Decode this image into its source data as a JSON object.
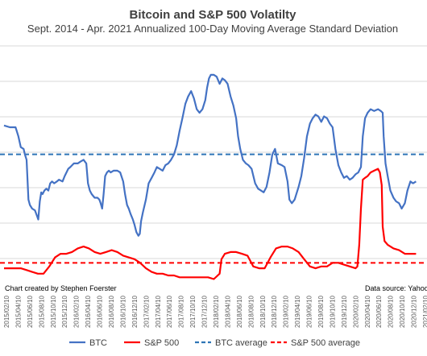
{
  "chart_data": {
    "type": "line",
    "title": "Bitcoin and S&P 500 Volatilty",
    "subtitle": "Sept. 2014 - Apr. 2021 Annualized 100-Day Moving Average Standard Deviation",
    "credit_left": "Chart created by Stephen Foerster",
    "credit_right": "Data source: Yahoo",
    "x_ticks": [
      "2015/02/10",
      "2015/04/10",
      "2015/06/10",
      "2015/08/10",
      "2015/10/10",
      "2015/12/10",
      "2016/02/10",
      "2016/04/10",
      "2016/06/10",
      "2016/08/10",
      "2016/10/10",
      "2016/12/10",
      "2017/02/10",
      "2017/04/10",
      "2017/06/10",
      "2017/08/10",
      "2017/10/10",
      "2017/12/10",
      "2018/02/10",
      "2018/04/10",
      "2018/06/10",
      "2018/08/10",
      "2018/10/10",
      "2018/12/10",
      "2019/02/10",
      "2019/04/10",
      "2019/06/10",
      "2019/08/10",
      "2019/10/10",
      "2019/12/10",
      "2020/02/10",
      "2020/04/10",
      "2020/06/10",
      "2020/08/10",
      "2020/10/10",
      "2020/12/10",
      "2021/02/10"
    ],
    "grid": true,
    "legend_position": "bottom",
    "series": [
      {
        "name": "BTC",
        "color": "#4472c4",
        "style": "solid",
        "points": [
          [
            "2014-12-10",
            76
          ],
          [
            "2015-01-10",
            75
          ],
          [
            "2015-02-10",
            75
          ],
          [
            "2015-02-25",
            70
          ],
          [
            "2015-03-10",
            64
          ],
          [
            "2015-03-25",
            63
          ],
          [
            "2015-04-01",
            60
          ],
          [
            "2015-04-10",
            57
          ],
          [
            "2015-04-20",
            35
          ],
          [
            "2015-04-28",
            32
          ],
          [
            "2015-05-10",
            30
          ],
          [
            "2015-05-25",
            29
          ],
          [
            "2015-06-05",
            26
          ],
          [
            "2015-06-12",
            24
          ],
          [
            "2015-06-20",
            34
          ],
          [
            "2015-06-28",
            39
          ],
          [
            "2015-07-05",
            38
          ],
          [
            "2015-07-15",
            40
          ],
          [
            "2015-07-25",
            41
          ],
          [
            "2015-08-05",
            40
          ],
          [
            "2015-08-15",
            44
          ],
          [
            "2015-08-25",
            45
          ],
          [
            "2015-09-05",
            44
          ],
          [
            "2015-09-20",
            45
          ],
          [
            "2015-10-01",
            46
          ],
          [
            "2015-10-20",
            45
          ],
          [
            "2015-11-01",
            48
          ],
          [
            "2015-11-20",
            52
          ],
          [
            "2015-12-01",
            53
          ],
          [
            "2015-12-20",
            55
          ],
          [
            "2016-01-10",
            55
          ],
          [
            "2016-01-25",
            56
          ],
          [
            "2016-02-10",
            57
          ],
          [
            "2016-02-25",
            55
          ],
          [
            "2016-03-05",
            44
          ],
          [
            "2016-03-15",
            40
          ],
          [
            "2016-03-25",
            38
          ],
          [
            "2016-04-10",
            36
          ],
          [
            "2016-04-25",
            36
          ],
          [
            "2016-05-05",
            35
          ],
          [
            "2016-05-12",
            33
          ],
          [
            "2016-05-20",
            30
          ],
          [
            "2016-05-28",
            38
          ],
          [
            "2016-06-05",
            48
          ],
          [
            "2016-06-15",
            50
          ],
          [
            "2016-06-25",
            51
          ],
          [
            "2016-07-05",
            50
          ],
          [
            "2016-07-20",
            51
          ],
          [
            "2016-08-10",
            51
          ],
          [
            "2016-08-25",
            50
          ],
          [
            "2016-09-10",
            45
          ],
          [
            "2016-09-20",
            38
          ],
          [
            "2016-10-01",
            32
          ],
          [
            "2016-10-10",
            30
          ],
          [
            "2016-10-20",
            27
          ],
          [
            "2016-11-01",
            24
          ],
          [
            "2016-11-10",
            21
          ],
          [
            "2016-11-20",
            17
          ],
          [
            "2016-12-01",
            15
          ],
          [
            "2016-12-08",
            16
          ],
          [
            "2016-12-15",
            23
          ],
          [
            "2016-12-25",
            28
          ],
          [
            "2017-01-10",
            35
          ],
          [
            "2017-01-25",
            44
          ],
          [
            "2017-02-10",
            47
          ],
          [
            "2017-02-25",
            50
          ],
          [
            "2017-03-10",
            53
          ],
          [
            "2017-03-25",
            52
          ],
          [
            "2017-04-10",
            51
          ],
          [
            "2017-04-25",
            54
          ],
          [
            "2017-05-10",
            55
          ],
          [
            "2017-05-25",
            57
          ],
          [
            "2017-06-10",
            60
          ],
          [
            "2017-06-25",
            65
          ],
          [
            "2017-07-10",
            73
          ],
          [
            "2017-07-25",
            80
          ],
          [
            "2017-08-10",
            88
          ],
          [
            "2017-08-25",
            92
          ],
          [
            "2017-09-10",
            95
          ],
          [
            "2017-09-25",
            91
          ],
          [
            "2017-10-10",
            85
          ],
          [
            "2017-10-25",
            83
          ],
          [
            "2017-11-10",
            85
          ],
          [
            "2017-11-25",
            90
          ],
          [
            "2017-12-05",
            97
          ],
          [
            "2017-12-15",
            102
          ],
          [
            "2017-12-25",
            104
          ],
          [
            "2018-01-10",
            104
          ],
          [
            "2018-01-25",
            103
          ],
          [
            "2018-02-10",
            99
          ],
          [
            "2018-02-25",
            102
          ],
          [
            "2018-03-10",
            101
          ],
          [
            "2018-03-25",
            99
          ],
          [
            "2018-04-10",
            92
          ],
          [
            "2018-04-25",
            87
          ],
          [
            "2018-05-10",
            80
          ],
          [
            "2018-05-20",
            70
          ],
          [
            "2018-06-01",
            63
          ],
          [
            "2018-06-15",
            57
          ],
          [
            "2018-07-01",
            55
          ],
          [
            "2018-07-15",
            54
          ],
          [
            "2018-08-01",
            52
          ],
          [
            "2018-08-20",
            44
          ],
          [
            "2018-09-05",
            41
          ],
          [
            "2018-09-20",
            40
          ],
          [
            "2018-10-05",
            39
          ],
          [
            "2018-10-20",
            42
          ],
          [
            "2018-11-05",
            50
          ],
          [
            "2018-11-20",
            60
          ],
          [
            "2018-12-05",
            63
          ],
          [
            "2018-12-20",
            55
          ],
          [
            "2019-01-10",
            54
          ],
          [
            "2019-01-25",
            53
          ],
          [
            "2019-02-10",
            45
          ],
          [
            "2019-02-20",
            35
          ],
          [
            "2019-03-05",
            33
          ],
          [
            "2019-03-20",
            35
          ],
          [
            "2019-04-10",
            42
          ],
          [
            "2019-04-25",
            48
          ],
          [
            "2019-05-10",
            58
          ],
          [
            "2019-05-25",
            70
          ],
          [
            "2019-06-10",
            77
          ],
          [
            "2019-06-25",
            80
          ],
          [
            "2019-07-10",
            82
          ],
          [
            "2019-07-25",
            81
          ],
          [
            "2019-08-10",
            78
          ],
          [
            "2019-08-25",
            81
          ],
          [
            "2019-09-10",
            80
          ],
          [
            "2019-09-25",
            77
          ],
          [
            "2019-10-10",
            75
          ],
          [
            "2019-10-25",
            63
          ],
          [
            "2019-11-10",
            54
          ],
          [
            "2019-11-25",
            50
          ],
          [
            "2019-12-10",
            47
          ],
          [
            "2019-12-25",
            48
          ],
          [
            "2020-01-10",
            46
          ],
          [
            "2020-01-25",
            47
          ],
          [
            "2020-02-10",
            49
          ],
          [
            "2020-02-25",
            50
          ],
          [
            "2020-03-10",
            53
          ],
          [
            "2020-03-20",
            70
          ],
          [
            "2020-04-01",
            80
          ],
          [
            "2020-04-15",
            83
          ],
          [
            "2020-05-01",
            85
          ],
          [
            "2020-05-20",
            84
          ],
          [
            "2020-06-10",
            85
          ],
          [
            "2020-06-25",
            84
          ],
          [
            "2020-07-05",
            83
          ],
          [
            "2020-07-10",
            70
          ],
          [
            "2020-07-20",
            55
          ],
          [
            "2020-08-01",
            48
          ],
          [
            "2020-08-15",
            40
          ],
          [
            "2020-09-01",
            36
          ],
          [
            "2020-09-15",
            34
          ],
          [
            "2020-10-01",
            33
          ],
          [
            "2020-10-15",
            30
          ],
          [
            "2020-11-01",
            33
          ],
          [
            "2020-11-15",
            40
          ],
          [
            "2020-12-01",
            45
          ],
          [
            "2020-12-15",
            44
          ],
          [
            "2020-12-31",
            45
          ]
        ]
      },
      {
        "name": "S&P 500",
        "color": "#ff0000",
        "style": "solid",
        "points": [
          [
            "2014-12-10",
            -3
          ],
          [
            "2015-01-10",
            -3
          ],
          [
            "2015-02-10",
            -3
          ],
          [
            "2015-03-10",
            -3
          ],
          [
            "2015-04-10",
            -4
          ],
          [
            "2015-05-10",
            -5
          ],
          [
            "2015-06-10",
            -6
          ],
          [
            "2015-07-10",
            -6
          ],
          [
            "2015-08-10",
            -2
          ],
          [
            "2015-09-10",
            3
          ],
          [
            "2015-10-10",
            5
          ],
          [
            "2015-11-10",
            5
          ],
          [
            "2015-12-10",
            6
          ],
          [
            "2016-01-10",
            8
          ],
          [
            "2016-02-10",
            9
          ],
          [
            "2016-03-10",
            8
          ],
          [
            "2016-04-10",
            6
          ],
          [
            "2016-05-10",
            5
          ],
          [
            "2016-06-10",
            6
          ],
          [
            "2016-07-10",
            7
          ],
          [
            "2016-08-10",
            6
          ],
          [
            "2016-09-10",
            4
          ],
          [
            "2016-10-10",
            3
          ],
          [
            "2016-11-10",
            2
          ],
          [
            "2016-12-10",
            0
          ],
          [
            "2017-01-10",
            -3
          ],
          [
            "2017-02-10",
            -5
          ],
          [
            "2017-03-10",
            -6
          ],
          [
            "2017-04-10",
            -6
          ],
          [
            "2017-05-10",
            -7
          ],
          [
            "2017-06-10",
            -7
          ],
          [
            "2017-07-10",
            -8
          ],
          [
            "2017-08-10",
            -8
          ],
          [
            "2017-09-10",
            -8
          ],
          [
            "2017-10-10",
            -8
          ],
          [
            "2017-11-10",
            -8
          ],
          [
            "2017-12-10",
            -8
          ],
          [
            "2018-01-10",
            -9
          ],
          [
            "2018-02-10",
            -6
          ],
          [
            "2018-02-20",
            2
          ],
          [
            "2018-03-10",
            5
          ],
          [
            "2018-04-10",
            6
          ],
          [
            "2018-05-10",
            6
          ],
          [
            "2018-06-10",
            5
          ],
          [
            "2018-07-10",
            4
          ],
          [
            "2018-08-10",
            -2
          ],
          [
            "2018-09-10",
            -3
          ],
          [
            "2018-10-10",
            -3
          ],
          [
            "2018-11-10",
            3
          ],
          [
            "2018-12-10",
            8
          ],
          [
            "2019-01-10",
            9
          ],
          [
            "2019-02-10",
            9
          ],
          [
            "2019-03-10",
            8
          ],
          [
            "2019-04-10",
            6
          ],
          [
            "2019-05-10",
            2
          ],
          [
            "2019-06-10",
            -2
          ],
          [
            "2019-07-10",
            -3
          ],
          [
            "2019-08-10",
            -2
          ],
          [
            "2019-09-10",
            -2
          ],
          [
            "2019-10-10",
            0
          ],
          [
            "2019-11-10",
            0
          ],
          [
            "2019-12-10",
            -1
          ],
          [
            "2020-01-10",
            -2
          ],
          [
            "2020-02-10",
            -3
          ],
          [
            "2020-02-20",
            -2
          ],
          [
            "2020-03-01",
            10
          ],
          [
            "2020-03-10",
            30
          ],
          [
            "2020-03-20",
            46
          ],
          [
            "2020-04-01",
            47
          ],
          [
            "2020-04-15",
            48
          ],
          [
            "2020-05-01",
            50
          ],
          [
            "2020-05-20",
            51
          ],
          [
            "2020-06-10",
            52
          ],
          [
            "2020-06-20",
            50
          ],
          [
            "2020-06-30",
            43
          ],
          [
            "2020-07-05",
            20
          ],
          [
            "2020-07-15",
            12
          ],
          [
            "2020-08-01",
            10
          ],
          [
            "2020-09-01",
            8
          ],
          [
            "2020-10-01",
            7
          ],
          [
            "2020-11-01",
            5
          ],
          [
            "2020-12-01",
            5
          ],
          [
            "2020-12-31",
            5
          ]
        ]
      },
      {
        "name": "BTC average",
        "color": "#2e75b6",
        "style": "dashed",
        "constant": 60
      },
      {
        "name": "S&P 500 average",
        "color": "#ff0000",
        "style": "dashed",
        "constant": 0
      }
    ]
  }
}
